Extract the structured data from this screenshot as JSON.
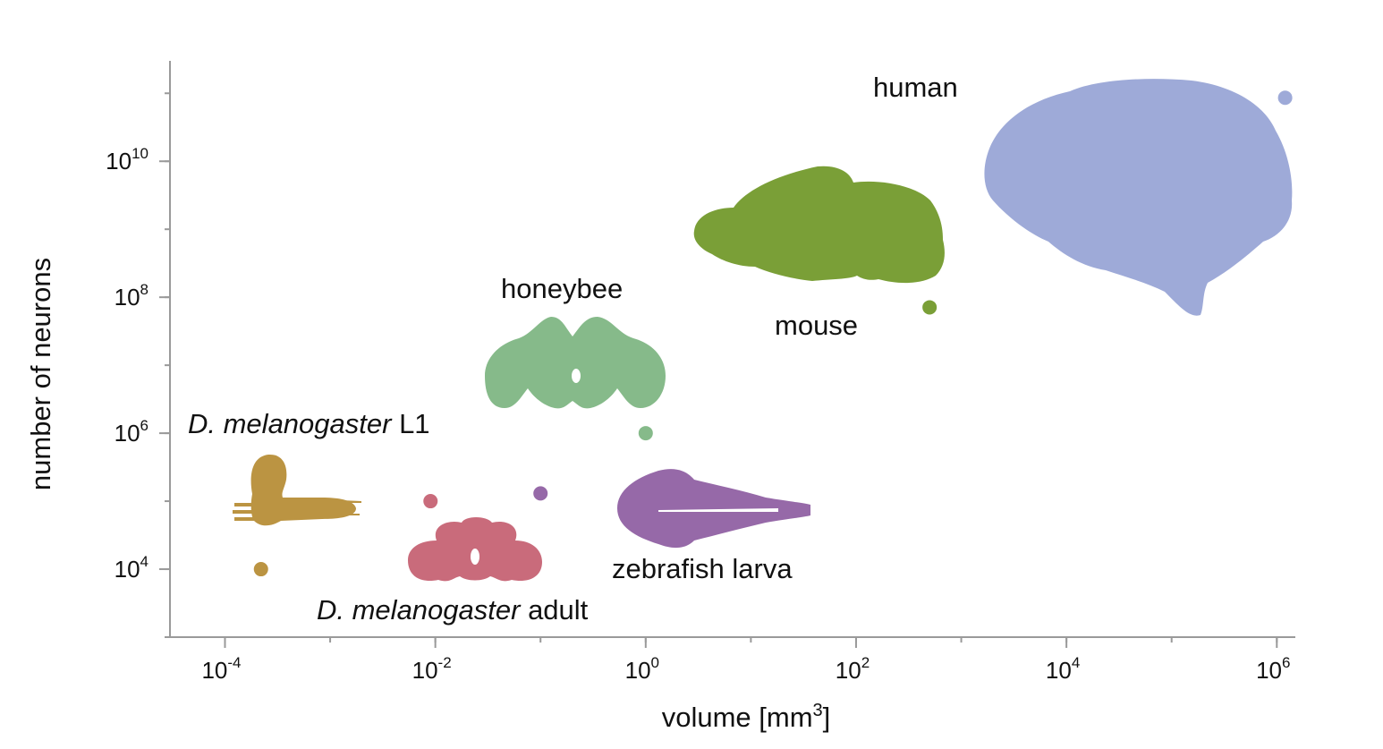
{
  "chart_data": {
    "type": "scatter",
    "xlabel": "volume [mm",
    "xlabel_sup": "3",
    "xlabel_end": "]",
    "ylabel": "number of neurons",
    "xscale": "log",
    "yscale": "log",
    "xlim": [
      3e-05,
      1500000.0
    ],
    "ylim": [
      1000.0,
      300000000000.0
    ],
    "x_ticks": [
      {
        "value": 0.0001,
        "base": "10",
        "exp": "-4"
      },
      {
        "value": 0.01,
        "base": "10",
        "exp": "-2"
      },
      {
        "value": 1,
        "base": "10",
        "exp": "0"
      },
      {
        "value": 100,
        "base": "10",
        "exp": "2"
      },
      {
        "value": 10000,
        "base": "10",
        "exp": "4"
      },
      {
        "value": 1000000,
        "base": "10",
        "exp": "6"
      }
    ],
    "y_ticks": [
      {
        "value": 10000,
        "base": "10",
        "exp": "4"
      },
      {
        "value": 1000000,
        "base": "10",
        "exp": "6"
      },
      {
        "value": 100000000,
        "base": "10",
        "exp": "8"
      },
      {
        "value": 10000000000,
        "base": "10",
        "exp": "10"
      }
    ],
    "grid": false,
    "legend": "none",
    "points": [
      {
        "key": "dmel-l1",
        "label_italic": "D. melanogaster",
        "label_rest": " L1",
        "x": 0.00022,
        "y": 10000,
        "color": "#bb9442"
      },
      {
        "key": "dmel-adult",
        "label_italic": "D. melanogaster",
        "label_rest": " adult",
        "x": 0.009,
        "y": 100000,
        "color": "#c96b7b"
      },
      {
        "key": "zebrafish-larva",
        "label_italic": "",
        "label_rest": "zebrafish larva",
        "x": 0.1,
        "y": 130000,
        "color": "#9669a8"
      },
      {
        "key": "honeybee",
        "label_italic": "",
        "label_rest": "honeybee",
        "x": 1,
        "y": 1000000,
        "color": "#86ba8a"
      },
      {
        "key": "mouse",
        "label_italic": "",
        "label_rest": "mouse",
        "x": 500,
        "y": 71000000,
        "color": "#7a9f37"
      },
      {
        "key": "human",
        "label_italic": "",
        "label_rest": "human",
        "x": 1200000,
        "y": 86000000000,
        "color": "#9eaad8"
      }
    ]
  }
}
